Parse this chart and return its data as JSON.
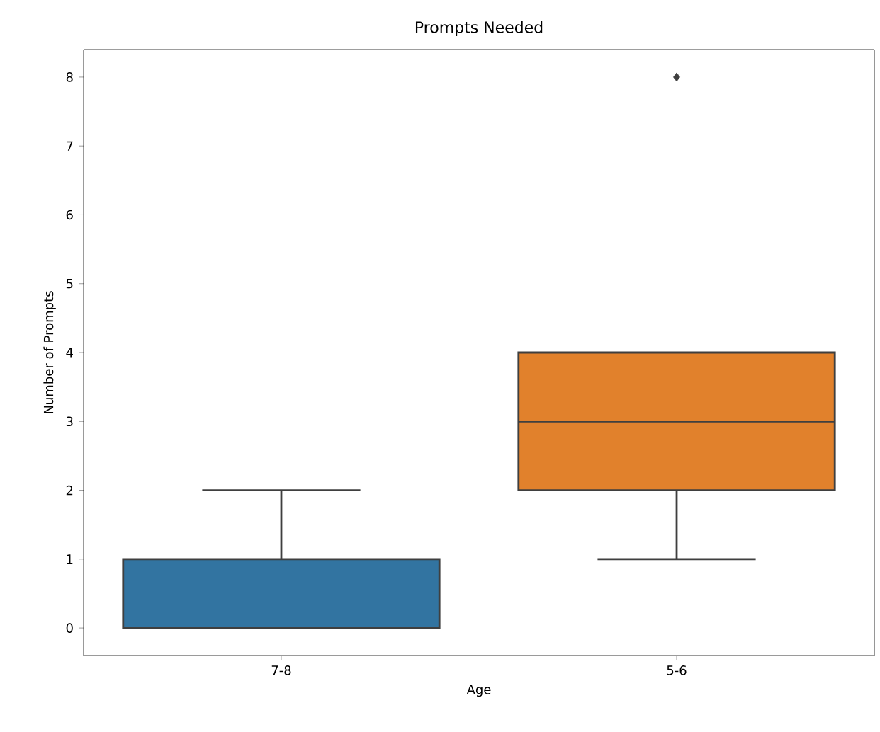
{
  "chart_data": {
    "type": "box",
    "title": "Prompts Needed",
    "xlabel": "Age",
    "ylabel": "Number of Prompts",
    "categories": [
      "7-8",
      "5-6"
    ],
    "colors": [
      "#3274a1",
      "#e1812c"
    ],
    "boxes": [
      {
        "low": 0,
        "q1": 0,
        "median": 0,
        "q3": 1,
        "high": 2
      },
      {
        "low": 1,
        "q1": 2,
        "median": 3,
        "q3": 4,
        "high": 4,
        "outliers": [
          8
        ]
      }
    ],
    "ylim": [
      -0.4,
      8.4
    ],
    "yticks": [
      0,
      1,
      2,
      3,
      4,
      5,
      6,
      7,
      8
    ]
  }
}
